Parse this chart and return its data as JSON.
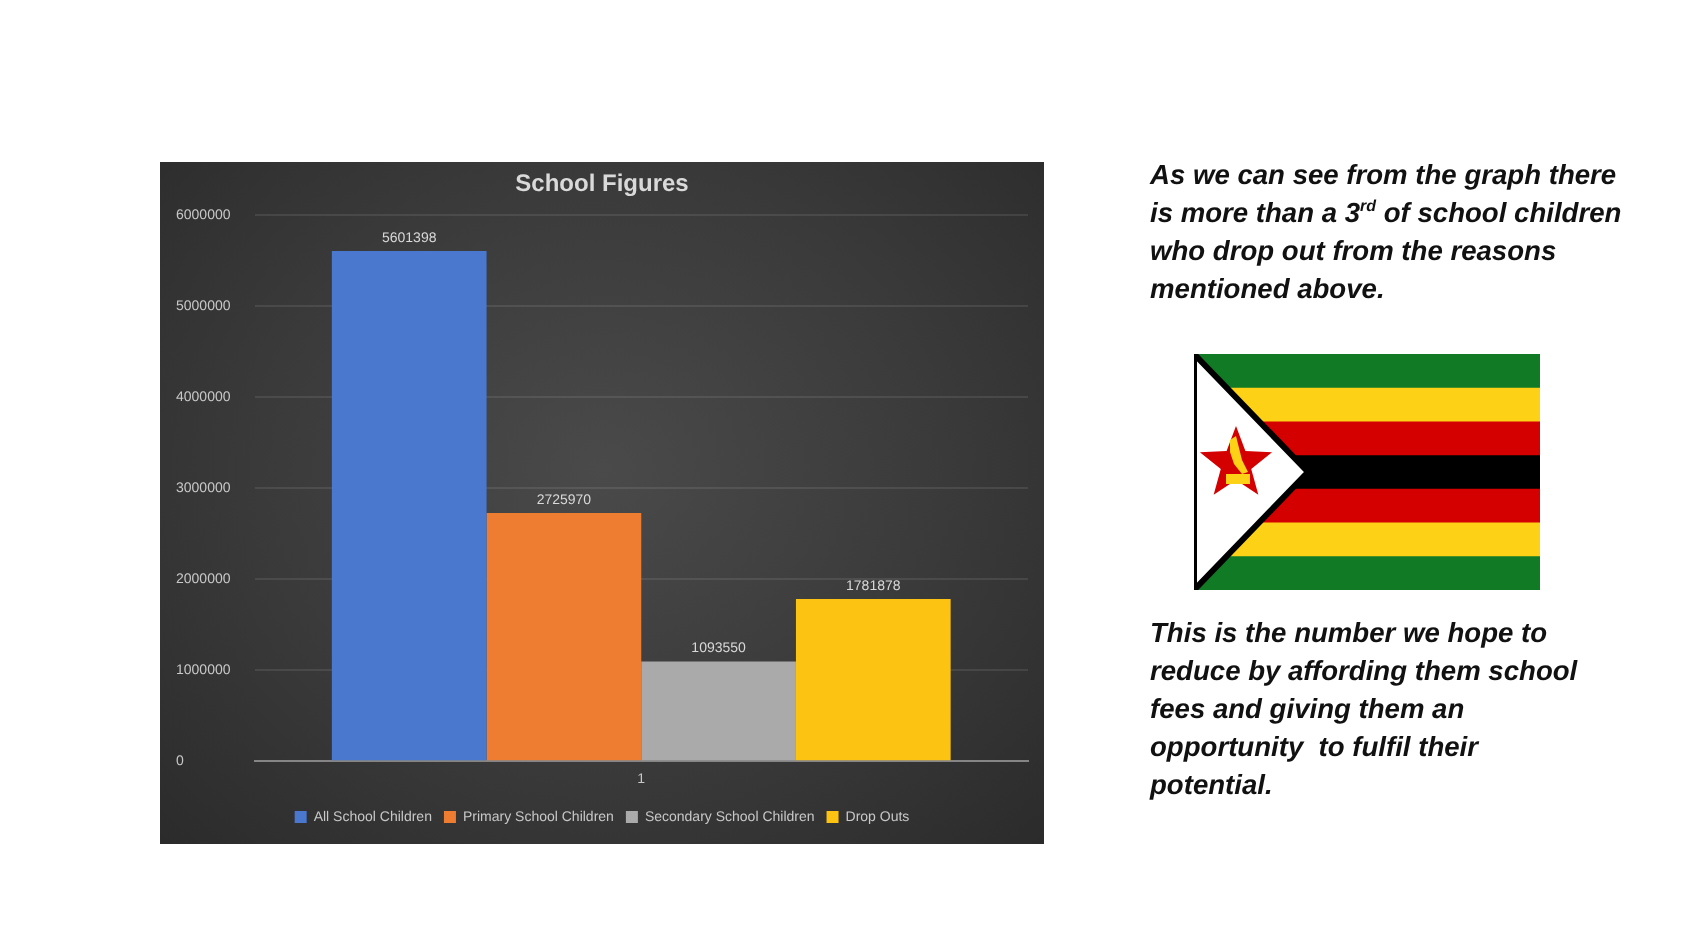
{
  "chart_data": {
    "type": "bar",
    "title": "School Figures",
    "categories": [
      "1"
    ],
    "series": [
      {
        "name": "All School Children",
        "color": "#4a78cf",
        "values": [
          5601398
        ]
      },
      {
        "name": "Primary School Children",
        "color": "#ef7d31",
        "values": [
          2725970
        ]
      },
      {
        "name": "Secondary School Children",
        "color": "#aaaaaa",
        "values": [
          1093550
        ]
      },
      {
        "name": "Drop Outs",
        "color": "#fdc313",
        "values": [
          1781878
        ]
      }
    ],
    "ylim": [
      0,
      6000000
    ],
    "yticks": [
      0,
      1000000,
      2000000,
      3000000,
      4000000,
      5000000,
      6000000
    ],
    "grid": "y",
    "legend": "bottom",
    "data_labels": true,
    "annotations": [
      "As we can see from the graph there is more than a 3$^{rd}$ of school children who drop out from the reasons mentioned above.",
      "This is the number we hope to reduce by affording them school fees and giving them an opportunity  to fulfil their potential."
    ]
  }
}
